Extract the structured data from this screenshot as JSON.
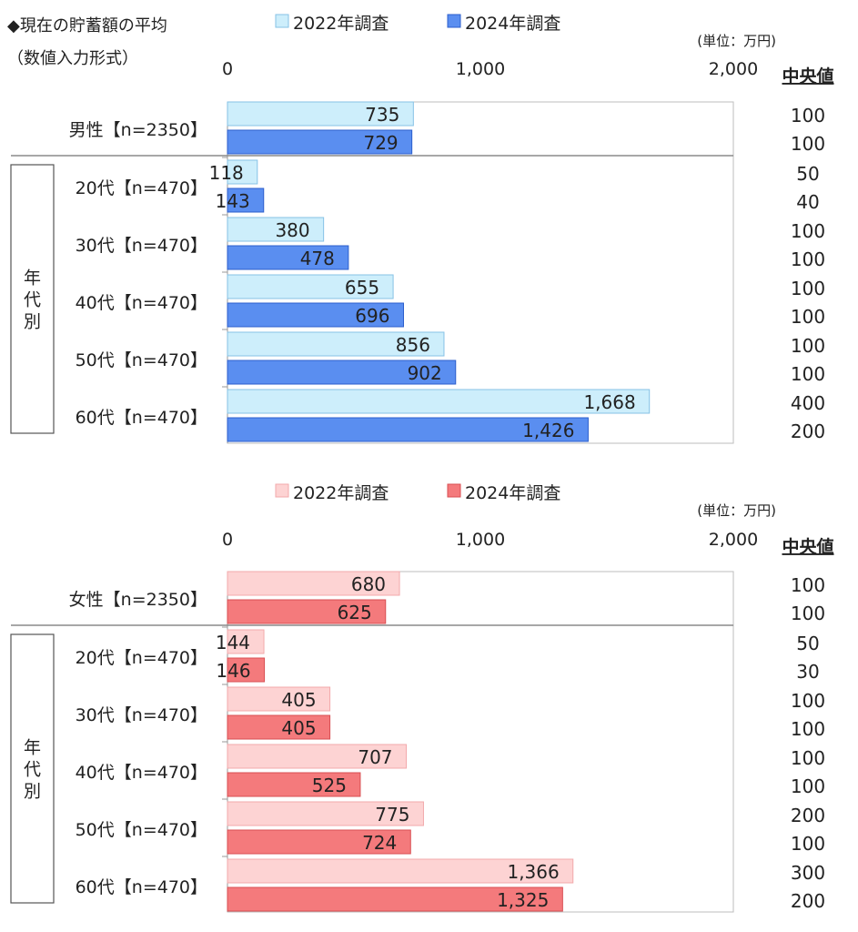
{
  "header": {
    "title_line1": "◆現在の貯蓄額の平均",
    "title_line2": "（数値入力形式）"
  },
  "chart_data": [
    {
      "type": "bar",
      "orientation": "horizontal",
      "gender_label": "男性",
      "unit": "(単位：万円)",
      "median_header": "中央値",
      "group_label": "年代別",
      "xlim": [
        0,
        2000
      ],
      "ticks": [
        0,
        1000,
        2000
      ],
      "tick_labels": [
        "0",
        "1,000",
        "2,000"
      ],
      "colors": {
        "2022年調査": "#cdeefb",
        "2024年調査": "#5a8ef0"
      },
      "borders": {
        "2022年調査": "#86c2e6",
        "2024年調査": "#2c5fcc"
      },
      "categories": [
        "男性【n=2350】",
        "20代【n=470】",
        "30代【n=470】",
        "40代【n=470】",
        "50代【n=470】",
        "60代【n=470】"
      ],
      "series": [
        {
          "name": "2022年調査",
          "values": [
            735,
            118,
            380,
            655,
            856,
            1668
          ],
          "labels": [
            "735",
            "118",
            "380",
            "655",
            "856",
            "1,668"
          ]
        },
        {
          "name": "2024年調査",
          "values": [
            729,
            143,
            478,
            696,
            902,
            1426
          ],
          "labels": [
            "729",
            "143",
            "478",
            "696",
            "902",
            "1,426"
          ]
        }
      ],
      "medians": [
        [
          "100",
          "100"
        ],
        [
          "50",
          "40"
        ],
        [
          "100",
          "100"
        ],
        [
          "100",
          "100"
        ],
        [
          "100",
          "100"
        ],
        [
          "400",
          "200"
        ]
      ]
    },
    {
      "type": "bar",
      "orientation": "horizontal",
      "gender_label": "女性",
      "unit": "(単位：万円)",
      "median_header": "中央値",
      "group_label": "年代別",
      "xlim": [
        0,
        2000
      ],
      "ticks": [
        0,
        1000,
        2000
      ],
      "tick_labels": [
        "0",
        "1,000",
        "2,000"
      ],
      "colors": {
        "2022年調査": "#fdd3d3",
        "2024年調査": "#f47a7c"
      },
      "borders": {
        "2022年調査": "#f2a9ab",
        "2024年調査": "#d84e52"
      },
      "categories": [
        "女性【n=2350】",
        "20代【n=470】",
        "30代【n=470】",
        "40代【n=470】",
        "50代【n=470】",
        "60代【n=470】"
      ],
      "series": [
        {
          "name": "2022年調査",
          "values": [
            680,
            144,
            405,
            707,
            775,
            1366
          ],
          "labels": [
            "680",
            "144",
            "405",
            "707",
            "775",
            "1,366"
          ]
        },
        {
          "name": "2024年調査",
          "values": [
            625,
            146,
            405,
            525,
            724,
            1325
          ],
          "labels": [
            "625",
            "146",
            "405",
            "525",
            "724",
            "1,325"
          ]
        }
      ],
      "medians": [
        [
          "100",
          "100"
        ],
        [
          "50",
          "30"
        ],
        [
          "100",
          "100"
        ],
        [
          "100",
          "100"
        ],
        [
          "200",
          "100"
        ],
        [
          "300",
          "200"
        ]
      ]
    }
  ]
}
